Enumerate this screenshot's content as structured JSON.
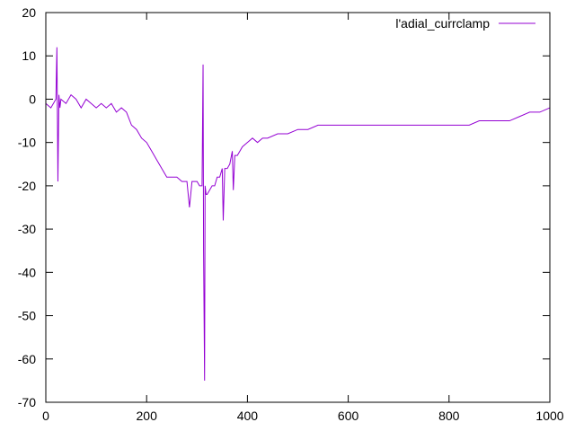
{
  "chart_data": {
    "type": "line",
    "title": "",
    "xlabel": "",
    "ylabel": "",
    "xlim": [
      0,
      1000
    ],
    "ylim": [
      -70,
      20
    ],
    "x_ticks": [
      0,
      200,
      400,
      600,
      800,
      1000
    ],
    "y_ticks": [
      20,
      10,
      0,
      -10,
      -20,
      -30,
      -40,
      -50,
      -60,
      -70
    ],
    "grid": false,
    "legend_position": "top-right",
    "series": [
      {
        "name": "l'adial_currclamp",
        "color": "#9400d3",
        "x": [
          0,
          10,
          20,
          22,
          24,
          26,
          28,
          30,
          40,
          50,
          60,
          70,
          80,
          90,
          100,
          110,
          120,
          130,
          140,
          150,
          160,
          170,
          180,
          190,
          200,
          210,
          220,
          230,
          240,
          250,
          260,
          270,
          280,
          285,
          290,
          300,
          305,
          310,
          312,
          313,
          315,
          316,
          318,
          320,
          325,
          330,
          335,
          340,
          345,
          350,
          352,
          355,
          360,
          365,
          370,
          372,
          375,
          380,
          390,
          400,
          410,
          420,
          430,
          440,
          460,
          480,
          500,
          520,
          540,
          560,
          580,
          600,
          620,
          640,
          660,
          680,
          700,
          720,
          740,
          760,
          780,
          800,
          820,
          840,
          860,
          880,
          900,
          920,
          940,
          960,
          980,
          1000
        ],
        "values": [
          -1,
          -2,
          0,
          12,
          -19,
          1,
          -2,
          0,
          -1,
          1,
          0,
          -2,
          0,
          -1,
          -2,
          -1,
          -2,
          -1,
          -3,
          -2,
          -3,
          -6,
          -7,
          -9,
          -10,
          -12,
          -14,
          -16,
          -18,
          -18,
          -18,
          -19,
          -19,
          -25,
          -19,
          -19,
          -20,
          -20,
          8,
          -35,
          -65,
          -20,
          -22,
          -22,
          -21,
          -20,
          -20,
          -18,
          -18,
          -16,
          -28,
          -16,
          -16,
          -15,
          -12,
          -21,
          -13,
          -13,
          -11,
          -10,
          -9,
          -10,
          -9,
          -9,
          -8,
          -8,
          -7,
          -7,
          -6,
          -6,
          -6,
          -6,
          -6,
          -6,
          -6,
          -6,
          -6,
          -6,
          -6,
          -6,
          -6,
          -6,
          -6,
          -6,
          -5,
          -5,
          -5,
          -5,
          -4,
          -3,
          -3,
          -2
        ]
      }
    ]
  }
}
